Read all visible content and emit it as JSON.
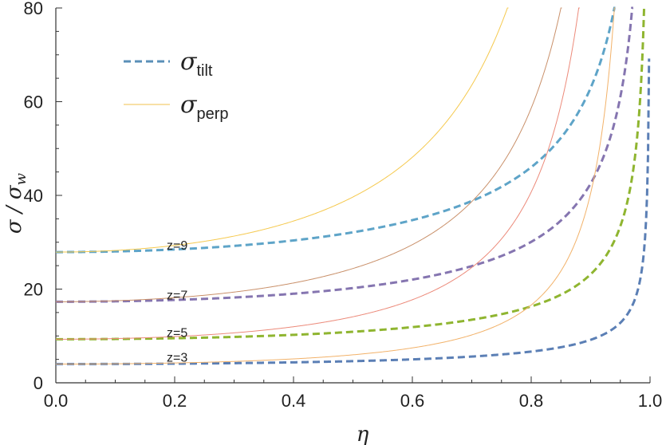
{
  "chart_data": {
    "type": "line",
    "xlabel": "η",
    "ylabel": {
      "main": "σ / σ",
      "sub": "w"
    },
    "xlim": [
      0,
      1
    ],
    "ylim": [
      0,
      80
    ],
    "xticks": [
      0.0,
      0.2,
      0.4,
      0.6,
      0.8,
      1.0
    ],
    "xtick_labels": [
      "0.0",
      "0.2",
      "0.4",
      "0.6",
      "0.8",
      "1.0"
    ],
    "yticks": [
      0,
      20,
      40,
      60,
      80
    ],
    "ytick_labels": [
      "0",
      "20",
      "40",
      "60",
      "80"
    ],
    "legend": [
      {
        "symbol": "σ",
        "sub": "tilt",
        "style": "dashed",
        "color": "#5a8fb8"
      },
      {
        "symbol": "σ",
        "sub": "perp",
        "style": "thin",
        "color": "#f2c14e"
      }
    ],
    "series": [
      {
        "name": "tilt z=3",
        "kind": "tilt",
        "color": "#5b7fb5",
        "base": 4.0,
        "scale": 0.25,
        "x": [
          0.0,
          0.2,
          0.4,
          0.6,
          0.8,
          0.9,
          0.95,
          0.98,
          0.99,
          0.995
        ],
        "y": [
          4.0,
          4.1,
          4.4,
          5.0,
          6.5,
          8.5,
          11.5,
          20.0,
          28.0,
          40.0
        ]
      },
      {
        "name": "tilt z=5",
        "kind": "tilt",
        "color": "#8fb530",
        "base": 9.3,
        "scale": 0.25,
        "x": [
          0.0,
          0.2,
          0.4,
          0.6,
          0.8,
          0.9,
          0.95,
          0.98,
          0.99
        ],
        "y": [
          9.3,
          9.6,
          10.4,
          12.0,
          15.9,
          22.0,
          31.3,
          55.0,
          80.0
        ]
      },
      {
        "name": "tilt z=7",
        "kind": "tilt",
        "color": "#8575b0",
        "base": 17.3,
        "scale": 0.25,
        "x": [
          0.0,
          0.2,
          0.4,
          0.6,
          0.8,
          0.9,
          0.95,
          0.97
        ],
        "y": [
          17.3,
          17.8,
          19.3,
          22.4,
          29.7,
          39.0,
          58.0,
          80.0
        ]
      },
      {
        "name": "tilt z=9",
        "kind": "tilt",
        "color": "#5ea4c8",
        "base": 27.9,
        "scale": 0.25,
        "x": [
          0.0,
          0.2,
          0.4,
          0.6,
          0.8,
          0.9,
          0.94
        ],
        "y": [
          27.9,
          28.6,
          31.0,
          36.0,
          47.8,
          62.0,
          80.0
        ]
      },
      {
        "name": "perp z=3",
        "kind": "perp",
        "color": "#f2b26a",
        "base": 4.0,
        "scale": 1.0,
        "x": [
          0.0,
          0.2,
          0.4,
          0.6,
          0.8,
          0.9,
          0.94
        ],
        "y": [
          4.0,
          4.2,
          5.0,
          7.4,
          15.5,
          40.0,
          80.0
        ]
      },
      {
        "name": "perp z=5",
        "kind": "perp",
        "color": "#ec8a7a",
        "base": 9.3,
        "scale": 1.0,
        "x": [
          0.0,
          0.2,
          0.4,
          0.6,
          0.8,
          0.88
        ],
        "y": [
          9.3,
          9.7,
          11.6,
          16.5,
          30.0,
          80.0
        ]
      },
      {
        "name": "perp z=7",
        "kind": "perp",
        "color": "#c9906a",
        "base": 17.3,
        "scale": 1.0,
        "x": [
          0.0,
          0.2,
          0.4,
          0.6,
          0.8,
          0.85
        ],
        "y": [
          17.3,
          18.0,
          21.5,
          30.8,
          58.0,
          80.0
        ]
      },
      {
        "name": "perp z=9",
        "kind": "perp",
        "color": "#f5c94e",
        "base": 27.9,
        "scale": 1.0,
        "x": [
          0.0,
          0.2,
          0.4,
          0.6,
          0.76
        ],
        "y": [
          27.9,
          29.0,
          34.7,
          49.6,
          80.0
        ]
      }
    ],
    "annotations": [
      {
        "text": "z=3",
        "x": 0.2,
        "y": 4.0
      },
      {
        "text": "z=5",
        "x": 0.2,
        "y": 9.3
      },
      {
        "text": "z=7",
        "x": 0.2,
        "y": 17.3
      },
      {
        "text": "z=9",
        "x": 0.2,
        "y": 27.9
      }
    ]
  }
}
